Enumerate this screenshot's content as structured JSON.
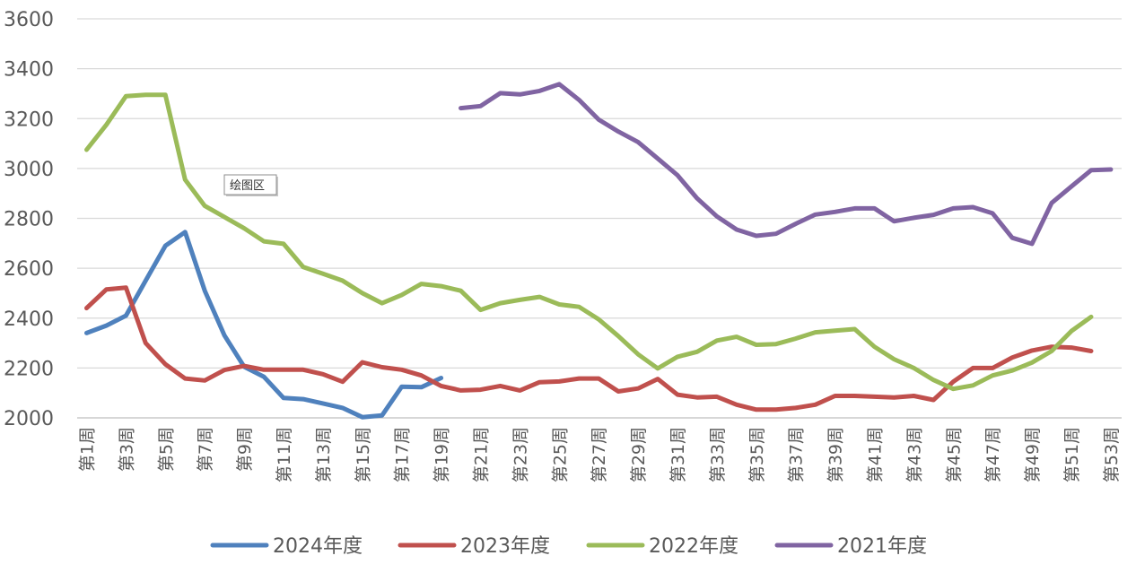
{
  "chart_data": {
    "type": "line",
    "title": "",
    "xlabel": "",
    "ylabel": "",
    "ylim": [
      2000,
      3600
    ],
    "y_ticks": [
      2000,
      2200,
      2400,
      2600,
      2800,
      3000,
      3200,
      3400,
      3600
    ],
    "grid": "horizontal",
    "legend_position": "bottom",
    "x_tick_labels": [
      "第1周",
      "第3周",
      "第5周",
      "第7周",
      "第9周",
      "第11周",
      "第13周",
      "第15周",
      "第17周",
      "第19周",
      "第21周",
      "第23周",
      "第25周",
      "第27周",
      "第29周",
      "第31周",
      "第33周",
      "第35周",
      "第37周",
      "第39周",
      "第41周",
      "第43周",
      "第45周",
      "第47周",
      "第49周",
      "第51周",
      "第53周"
    ],
    "x_tick_weeks": [
      1,
      3,
      5,
      7,
      9,
      11,
      13,
      15,
      17,
      19,
      21,
      23,
      25,
      27,
      29,
      31,
      33,
      35,
      37,
      39,
      41,
      43,
      45,
      47,
      49,
      51,
      53
    ],
    "tooltip": {
      "text": "绘图区",
      "week": 9,
      "value": 2995
    },
    "series": [
      {
        "name": "2024年度",
        "color": "#4F81BD",
        "start_week": 1,
        "values": [
          2340,
          2370,
          2410,
          2550,
          2690,
          2745,
          2510,
          2330,
          2205,
          2165,
          2080,
          2075,
          2058,
          2040,
          2003,
          2010,
          2125,
          2123,
          2160
        ]
      },
      {
        "name": "2023年度",
        "color": "#C0504D",
        "start_week": 1,
        "values": [
          2440,
          2515,
          2522,
          2300,
          2215,
          2158,
          2150,
          2192,
          2208,
          2193,
          2193,
          2193,
          2175,
          2145,
          2223,
          2203,
          2193,
          2170,
          2128,
          2110,
          2113,
          2128,
          2110,
          2143,
          2146,
          2158,
          2158,
          2106,
          2118,
          2156,
          2093,
          2082,
          2085,
          2053,
          2033,
          2033,
          2040,
          2053,
          2088,
          2088,
          2085,
          2082,
          2088,
          2072,
          2145,
          2200,
          2200,
          2242,
          2270,
          2285,
          2282,
          2268
        ]
      },
      {
        "name": "2022年度",
        "color": "#9BBB59",
        "start_week": 1,
        "values": [
          3075,
          3175,
          3290,
          3295,
          3295,
          2955,
          2850,
          2805,
          2760,
          2708,
          2698,
          2605,
          2578,
          2550,
          2500,
          2460,
          2493,
          2537,
          2528,
          2510,
          2433,
          2460,
          2473,
          2485,
          2455,
          2445,
          2395,
          2328,
          2255,
          2198,
          2245,
          2265,
          2310,
          2325,
          2293,
          2296,
          2318,
          2343,
          2350,
          2356,
          2285,
          2235,
          2200,
          2152,
          2116,
          2130,
          2170,
          2190,
          2222,
          2268,
          2348,
          2405
        ]
      },
      {
        "name": "2021年度",
        "color": "#8064A2",
        "start_week": 20,
        "values": [
          3242,
          3250,
          3302,
          3297,
          3311,
          3338,
          3275,
          3196,
          3148,
          3106,
          3040,
          2973,
          2880,
          2808,
          2755,
          2730,
          2738,
          2778,
          2815,
          2826,
          2840,
          2840,
          2788,
          2802,
          2814,
          2840,
          2845,
          2820,
          2722,
          2698,
          2862,
          2928,
          2993,
          2996
        ]
      }
    ]
  }
}
